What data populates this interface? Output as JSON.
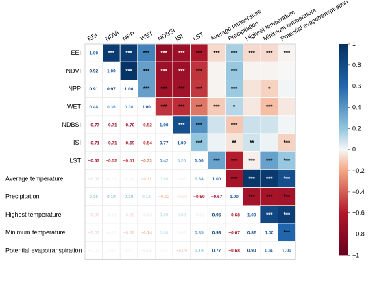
{
  "chart_data": {
    "type": "heatmap",
    "variables": [
      "EEI",
      "NDVI",
      "NPP",
      "WET",
      "NDBSI",
      "ISI",
      "LST",
      "Average temperature",
      "Precipitation",
      "Highest temperature",
      "Minimum temperature",
      "Potential evapotranspiration"
    ],
    "lower_values": [
      [
        1.0
      ],
      [
        0.92,
        1.0
      ],
      [
        0.91,
        0.97,
        1.0
      ],
      [
        0.48,
        0.36,
        0.36,
        1.0
      ],
      [
        -0.77,
        -0.71,
        -0.7,
        -0.52,
        1.0
      ],
      [
        -0.71,
        -0.71,
        -0.69,
        -0.54,
        0.77,
        1.0
      ],
      [
        -0.63,
        -0.52,
        -0.51,
        -0.33,
        0.42,
        0.2,
        1.0
      ],
      [
        -0.07,
        -0.01,
        -0.01,
        -0.11,
        0.08,
        0.02,
        0.34,
        1.0
      ],
      [
        0.16,
        0.19,
        0.18,
        0.13,
        -0.12,
        -0.05,
        -0.59,
        -0.67,
        1.0
      ],
      [
        -0.07,
        -0.01,
        -0.05,
        -0.04,
        0.09,
        0.08,
        -0.02,
        0.95,
        -0.68,
        1.0
      ],
      [
        -0.07,
        -0.01,
        -0.09,
        -0.14,
        0.08,
        0.02,
        0.35,
        0.93,
        -0.67,
        0.82,
        1.0
      ],
      [
        -0.01,
        0.0,
        0.01,
        -0.04,
        0.01,
        -0.09,
        0.19,
        0.77,
        -0.68,
        0.9,
        0.6,
        1.0
      ]
    ],
    "significance": [
      [
        "",
        "***",
        "***",
        "***",
        "***",
        "***",
        "***",
        "***",
        "***",
        "***",
        "***",
        "***"
      ],
      [
        "***",
        "",
        "***",
        "***",
        "***",
        "***",
        "***",
        "",
        "***",
        "",
        "",
        ""
      ],
      [
        "***",
        "***",
        "",
        "***",
        "***",
        "***",
        "***",
        "",
        "***",
        "",
        "*",
        ""
      ],
      [
        "***",
        "***",
        "***",
        "",
        "***",
        "***",
        "***",
        "***",
        "*",
        "",
        "***",
        ""
      ],
      [
        "***",
        "***",
        "***",
        "***",
        "",
        "***",
        "***",
        "",
        "***",
        "",
        "",
        ""
      ],
      [
        "***",
        "***",
        "***",
        "***",
        "***",
        "",
        "***",
        "",
        "**",
        "**",
        "",
        "***"
      ],
      [
        "***",
        "***",
        "***",
        "***",
        "***",
        "***",
        "",
        "***",
        "***",
        "***",
        "***",
        "***"
      ],
      [
        "***",
        "",
        "",
        "***",
        "",
        "",
        "***",
        "",
        "***",
        "***",
        "***",
        "***"
      ],
      [
        "***",
        "***",
        "***",
        "*",
        "***",
        "**",
        "***",
        "***",
        "",
        "***",
        "***",
        "***"
      ],
      [
        "***",
        "",
        "",
        "",
        "",
        "**",
        "***",
        "***",
        "***",
        "",
        "***",
        "***"
      ],
      [
        "***",
        "",
        "*",
        "***",
        "",
        "",
        "***",
        "***",
        "***",
        "***",
        "",
        "***"
      ],
      [
        "***",
        "",
        "",
        "",
        "",
        "***",
        "***",
        "***",
        "***",
        "***",
        "***",
        ""
      ]
    ],
    "colorbar": {
      "ticks": [
        "1",
        "0.8",
        "0.6",
        "0.4",
        "0.2",
        "0",
        "−0.2",
        "−0.4",
        "−0.6",
        "−0.8",
        "−1"
      ],
      "range": [
        -1,
        1
      ]
    },
    "colors": {
      "pos_strong": "#053061",
      "pos_mid": "#2166ac",
      "pos_light": "#92c5de",
      "neutral": "#f7f7f7",
      "neg_light": "#f4a582",
      "neg_mid": "#b2182b",
      "neg_strong": "#67001f"
    }
  }
}
